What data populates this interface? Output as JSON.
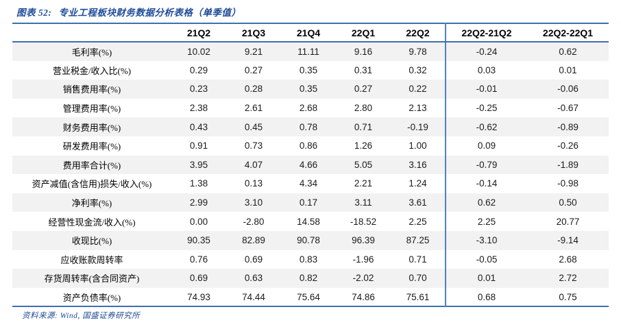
{
  "title": {
    "prefix": "图表 52:",
    "text": "专业工程板块财务数据分析表格（单季值）"
  },
  "table": {
    "label_column_header": "",
    "columns": [
      "21Q2",
      "21Q3",
      "21Q4",
      "22Q1",
      "22Q2",
      "22Q2-21Q2",
      "22Q2-22Q1"
    ],
    "rows": [
      {
        "label": "毛利率(%)",
        "values": [
          "10.02",
          "9.21",
          "11.11",
          "9.16",
          "9.78",
          "-0.24",
          "0.62"
        ]
      },
      {
        "label": "营业税金/收入比(%)",
        "values": [
          "0.29",
          "0.27",
          "0.35",
          "0.31",
          "0.32",
          "0.03",
          "0.01"
        ]
      },
      {
        "label": "销售费用率(%)",
        "values": [
          "0.23",
          "0.28",
          "0.35",
          "0.27",
          "0.22",
          "-0.01",
          "-0.06"
        ]
      },
      {
        "label": "管理费用率(%)",
        "values": [
          "2.38",
          "2.61",
          "2.68",
          "2.80",
          "2.13",
          "-0.25",
          "-0.67"
        ]
      },
      {
        "label": "财务费用率(%)",
        "values": [
          "0.43",
          "0.45",
          "0.78",
          "0.71",
          "-0.19",
          "-0.62",
          "-0.89"
        ]
      },
      {
        "label": "研发费用率(%)",
        "values": [
          "0.91",
          "0.73",
          "0.86",
          "1.26",
          "1.00",
          "0.09",
          "-0.26"
        ]
      },
      {
        "label": "费用率合计(%)",
        "values": [
          "3.95",
          "4.07",
          "4.66",
          "5.05",
          "3.16",
          "-0.79",
          "-1.89"
        ]
      },
      {
        "label": "资产减值(含信用)损失/收入(%)",
        "values": [
          "1.38",
          "0.13",
          "4.34",
          "2.21",
          "1.24",
          "-0.14",
          "-0.98"
        ]
      },
      {
        "label": "净利率(%)",
        "values": [
          "2.99",
          "3.10",
          "0.17",
          "3.11",
          "3.61",
          "0.62",
          "0.50"
        ]
      },
      {
        "label": "经营性现金流/收入(%)",
        "values": [
          "0.00",
          "-2.80",
          "14.58",
          "-18.52",
          "2.25",
          "2.25",
          "20.77"
        ]
      },
      {
        "label": "收现比(%)",
        "values": [
          "90.35",
          "82.89",
          "90.78",
          "96.39",
          "87.25",
          "-3.10",
          "-9.14"
        ]
      },
      {
        "label": "应收账款周转率",
        "values": [
          "0.76",
          "0.69",
          "0.83",
          "-1.96",
          "0.71",
          "-0.05",
          "2.68"
        ]
      },
      {
        "label": "存货周转率(含合同资产)",
        "values": [
          "0.69",
          "0.63",
          "0.82",
          "-2.02",
          "0.70",
          "0.01",
          "2.72"
        ]
      },
      {
        "label": "资产负债率(%)",
        "values": [
          "74.93",
          "74.44",
          "75.64",
          "74.86",
          "75.61",
          "0.68",
          "0.75"
        ]
      }
    ]
  },
  "footer": {
    "source": "资料来源: Wind, 国盛证券研究所"
  },
  "colors": {
    "accent_blue": "#1F4B99",
    "border_blue": "#3E6FB0",
    "divider_blue": "#4D80C4",
    "row_alt": "#F2F2F2",
    "text_dark": "#1a1a1a"
  }
}
